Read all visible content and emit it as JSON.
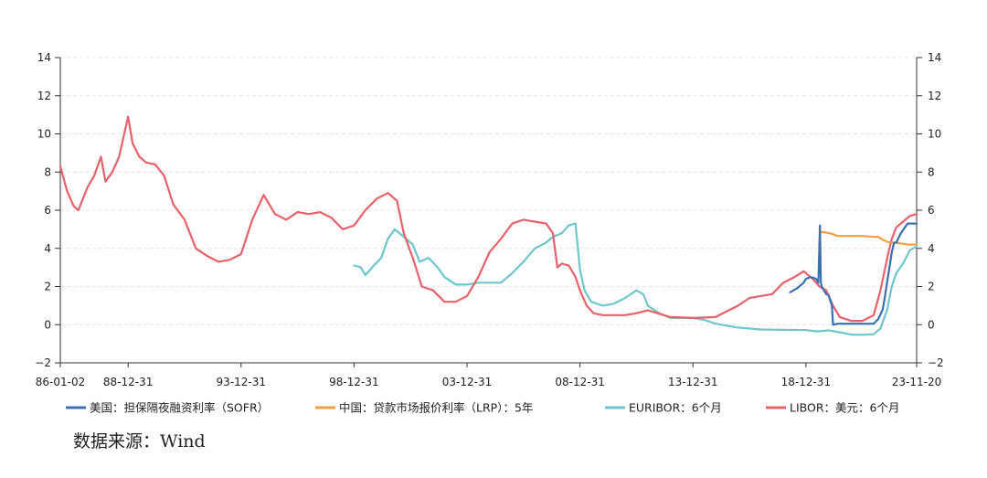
{
  "source_note": "数据来源：Wind",
  "chart_data": {
    "type": "line",
    "title": "",
    "xlabel": "",
    "ylabel": "",
    "ylim": [
      -2,
      14
    ],
    "y_ticks": [
      -2,
      0,
      2,
      4,
      6,
      8,
      10,
      12,
      14
    ],
    "y_ticks_right": [
      -2,
      0,
      2,
      4,
      6,
      8,
      10,
      12,
      14
    ],
    "y_tick_labels": [
      "−2",
      "0",
      "2",
      "4",
      "6",
      "8",
      "10",
      "12",
      "14"
    ],
    "x_ticks": [
      "86-01-02",
      "88-12-31",
      "93-12-31",
      "98-12-31",
      "03-12-31",
      "08-12-31",
      "13-12-31",
      "18-12-31",
      "23-11-20"
    ],
    "x_tick_values": [
      1986.0,
      1989.0,
      1994.0,
      1999.0,
      2004.0,
      2009.0,
      2014.0,
      2019.0,
      2023.9
    ],
    "xlim": [
      1986.0,
      2023.9
    ],
    "grid": "horizontal dashed",
    "legend_position": "bottom",
    "series": [
      {
        "name": "美国：担保隔夜融资利率（SOFR）",
        "color": "#3a6fb0",
        "x": [
          2018.3,
          2018.6,
          2018.9,
          2019.0,
          2019.2,
          2019.35,
          2019.45,
          2019.55,
          2019.62,
          2019.66,
          2019.7,
          2019.8,
          2019.9,
          2020.0,
          2020.15,
          2020.2,
          2020.4,
          2021.0,
          2022.0,
          2022.2,
          2022.4,
          2022.5,
          2022.6,
          2022.7,
          2022.8,
          2022.9,
          2023.0,
          2023.2,
          2023.5,
          2023.9
        ],
        "values": [
          1.7,
          1.9,
          2.2,
          2.4,
          2.5,
          2.45,
          2.4,
          2.2,
          5.2,
          2.2,
          2.0,
          1.8,
          1.6,
          1.55,
          1.0,
          0.0,
          0.05,
          0.05,
          0.05,
          0.3,
          0.8,
          1.5,
          2.3,
          3.0,
          3.8,
          4.3,
          4.3,
          4.8,
          5.3,
          5.3
        ]
      },
      {
        "name": "中国：贷款市场报价利率（LRP）：5年",
        "color": "#f0a040",
        "x": [
          2019.66,
          2019.8,
          2020.0,
          2020.2,
          2020.4,
          2021.0,
          2021.5,
          2022.0,
          2022.2,
          2022.4,
          2022.7,
          2023.0,
          2023.5,
          2023.9
        ],
        "values": [
          4.85,
          4.85,
          4.8,
          4.75,
          4.65,
          4.65,
          4.65,
          4.6,
          4.6,
          4.45,
          4.3,
          4.3,
          4.2,
          4.2
        ]
      },
      {
        "name": "EURIBOR：6个月",
        "color": "#6ec6cc",
        "x": [
          1999.0,
          1999.3,
          1999.5,
          1999.8,
          2000.2,
          2000.5,
          2000.8,
          2001.2,
          2001.6,
          2001.9,
          2002.3,
          2002.7,
          2003.0,
          2003.5,
          2004.0,
          2004.5,
          2005.0,
          2005.5,
          2006.0,
          2006.5,
          2007.0,
          2007.5,
          2007.8,
          2008.2,
          2008.5,
          2008.8,
          2009.0,
          2009.2,
          2009.5,
          2010.0,
          2010.5,
          2011.0,
          2011.5,
          2011.8,
          2012.0,
          2012.5,
          2013.0,
          2014.0,
          2014.5,
          2015.0,
          2015.5,
          2016.0,
          2017.0,
          2018.0,
          2019.0,
          2019.5,
          2020.0,
          2020.5,
          2021.0,
          2021.5,
          2022.0,
          2022.3,
          2022.6,
          2022.8,
          2023.0,
          2023.3,
          2023.6,
          2023.9
        ],
        "values": [
          3.1,
          3.0,
          2.6,
          3.0,
          3.5,
          4.5,
          5.0,
          4.6,
          4.2,
          3.3,
          3.5,
          3.0,
          2.5,
          2.1,
          2.1,
          2.2,
          2.2,
          2.2,
          2.7,
          3.3,
          4.0,
          4.3,
          4.6,
          4.8,
          5.2,
          5.3,
          2.9,
          1.8,
          1.2,
          1.0,
          1.1,
          1.4,
          1.8,
          1.6,
          1.0,
          0.6,
          0.35,
          0.35,
          0.25,
          0.05,
          -0.05,
          -0.15,
          -0.25,
          -0.27,
          -0.28,
          -0.35,
          -0.3,
          -0.4,
          -0.52,
          -0.53,
          -0.5,
          -0.2,
          0.8,
          2.0,
          2.7,
          3.2,
          3.9,
          4.1
        ]
      },
      {
        "name": "LIBOR：美元：6个月",
        "color": "#e8616a",
        "x": [
          1986.0,
          1986.3,
          1986.6,
          1986.8,
          1987.2,
          1987.5,
          1987.8,
          1988.0,
          1988.3,
          1988.6,
          1989.0,
          1989.2,
          1989.5,
          1989.8,
          1990.2,
          1990.6,
          1991.0,
          1991.5,
          1992.0,
          1992.5,
          1993.0,
          1993.5,
          1994.0,
          1994.5,
          1995.0,
          1995.5,
          1996.0,
          1996.5,
          1997.0,
          1997.5,
          1998.0,
          1998.5,
          1999.0,
          1999.5,
          2000.0,
          2000.5,
          2000.9,
          2001.2,
          2001.6,
          2002.0,
          2002.5,
          2003.0,
          2003.5,
          2004.0,
          2004.5,
          2005.0,
          2005.5,
          2006.0,
          2006.5,
          2007.0,
          2007.5,
          2007.8,
          2008.0,
          2008.2,
          2008.5,
          2008.8,
          2009.0,
          2009.3,
          2009.6,
          2010.0,
          2010.5,
          2011.0,
          2011.5,
          2012.0,
          2013.0,
          2014.0,
          2015.0,
          2016.0,
          2016.5,
          2017.0,
          2017.5,
          2018.0,
          2018.5,
          2018.9,
          2019.3,
          2019.6,
          2019.9,
          2020.2,
          2020.5,
          2021.0,
          2021.5,
          2022.0,
          2022.3,
          2022.6,
          2022.8,
          2023.0,
          2023.3,
          2023.6,
          2023.9
        ],
        "values": [
          8.3,
          7.0,
          6.2,
          6.0,
          7.2,
          7.8,
          8.8,
          7.5,
          8.0,
          8.8,
          10.9,
          9.5,
          8.8,
          8.5,
          8.4,
          7.8,
          6.3,
          5.5,
          4.0,
          3.6,
          3.3,
          3.4,
          3.7,
          5.5,
          6.8,
          5.8,
          5.5,
          5.9,
          5.8,
          5.9,
          5.6,
          5.0,
          5.2,
          6.0,
          6.6,
          6.9,
          6.5,
          4.8,
          3.5,
          2.0,
          1.8,
          1.2,
          1.2,
          1.5,
          2.5,
          3.8,
          4.5,
          5.3,
          5.5,
          5.4,
          5.3,
          4.8,
          3.0,
          3.2,
          3.1,
          2.5,
          1.8,
          1.0,
          0.6,
          0.5,
          0.5,
          0.5,
          0.6,
          0.75,
          0.4,
          0.35,
          0.4,
          1.0,
          1.4,
          1.5,
          1.6,
          2.2,
          2.5,
          2.8,
          2.4,
          2.0,
          1.8,
          1.0,
          0.4,
          0.2,
          0.2,
          0.5,
          1.8,
          3.5,
          4.5,
          5.1,
          5.4,
          5.7,
          5.8
        ]
      }
    ]
  }
}
